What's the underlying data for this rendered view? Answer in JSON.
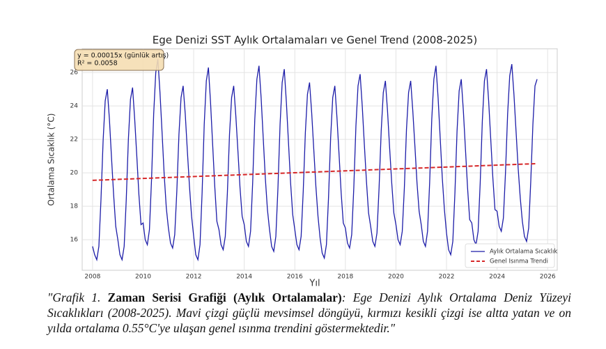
{
  "chart_data": {
    "type": "line",
    "title": "Ege Denizi SST Aylık Ortalamaları ve Genel Trend (2008-2025)",
    "xlabel": "Yıl",
    "ylabel": "Ortalama Sıcaklık (°C)",
    "annotation": [
      "y = 0.00015x (günlük artış)",
      "R² = 0.0058"
    ],
    "xlim": [
      2007.59,
      2026.38
    ],
    "xticks": [
      2008,
      2010,
      2012,
      2014,
      2016,
      2018,
      2020,
      2022,
      2024,
      2026
    ],
    "ylim": [
      14.17,
      27.42
    ],
    "yticks": [
      16,
      18,
      20,
      22,
      24,
      26
    ],
    "grid": true,
    "legend": "lower right",
    "series": [
      {
        "name": "Aylık Ortalama Sıcaklık",
        "color": "#1c1ca8",
        "style": "solid",
        "x": [
          2008,
          2008.083,
          2008.167,
          2008.25,
          2008.333,
          2008.417,
          2008.5,
          2008.583,
          2008.667,
          2008.75,
          2008.833,
          2008.917,
          2009,
          2009.083,
          2009.167,
          2009.25,
          2009.333,
          2009.417,
          2009.5,
          2009.583,
          2009.667,
          2009.75,
          2009.833,
          2009.917,
          2010,
          2010.083,
          2010.167,
          2010.25,
          2010.333,
          2010.417,
          2010.5,
          2010.583,
          2010.667,
          2010.75,
          2010.833,
          2010.917,
          2011,
          2011.083,
          2011.167,
          2011.25,
          2011.333,
          2011.417,
          2011.5,
          2011.583,
          2011.667,
          2011.75,
          2011.833,
          2011.917,
          2012,
          2012.083,
          2012.167,
          2012.25,
          2012.333,
          2012.417,
          2012.5,
          2012.583,
          2012.667,
          2012.75,
          2012.833,
          2012.917,
          2013,
          2013.083,
          2013.167,
          2013.25,
          2013.333,
          2013.417,
          2013.5,
          2013.583,
          2013.667,
          2013.75,
          2013.833,
          2013.917,
          2014,
          2014.083,
          2014.167,
          2014.25,
          2014.333,
          2014.417,
          2014.5,
          2014.583,
          2014.667,
          2014.75,
          2014.833,
          2014.917,
          2015,
          2015.083,
          2015.167,
          2015.25,
          2015.333,
          2015.417,
          2015.5,
          2015.583,
          2015.667,
          2015.75,
          2015.833,
          2015.917,
          2016,
          2016.083,
          2016.167,
          2016.25,
          2016.333,
          2016.417,
          2016.5,
          2016.583,
          2016.667,
          2016.75,
          2016.833,
          2016.917,
          2017,
          2017.083,
          2017.167,
          2017.25,
          2017.333,
          2017.417,
          2017.5,
          2017.583,
          2017.667,
          2017.75,
          2017.833,
          2017.917,
          2018,
          2018.083,
          2018.167,
          2018.25,
          2018.333,
          2018.417,
          2018.5,
          2018.583,
          2018.667,
          2018.75,
          2018.833,
          2018.917,
          2019,
          2019.083,
          2019.167,
          2019.25,
          2019.333,
          2019.417,
          2019.5,
          2019.583,
          2019.667,
          2019.75,
          2019.833,
          2019.917,
          2020,
          2020.083,
          2020.167,
          2020.25,
          2020.333,
          2020.417,
          2020.5,
          2020.583,
          2020.667,
          2020.75,
          2020.833,
          2020.917,
          2021,
          2021.083,
          2021.167,
          2021.25,
          2021.333,
          2021.417,
          2021.5,
          2021.583,
          2021.667,
          2021.75,
          2021.833,
          2021.917,
          2022,
          2022.083,
          2022.167,
          2022.25,
          2022.333,
          2022.417,
          2022.5,
          2022.583,
          2022.667,
          2022.75,
          2022.833,
          2022.917,
          2023,
          2023.083,
          2023.167,
          2023.25,
          2023.333,
          2023.417,
          2023.5,
          2023.583,
          2023.667,
          2023.75,
          2023.833,
          2023.917,
          2024,
          2024.083,
          2024.167,
          2024.25,
          2024.333,
          2024.417,
          2024.5,
          2024.583,
          2024.667,
          2024.75,
          2024.833,
          2024.917,
          2025,
          2025.083,
          2025.167,
          2025.25,
          2025.333,
          2025.417,
          2025.5,
          2025.583
        ],
        "values": [
          15.6,
          15.1,
          14.8,
          15.6,
          18.4,
          21.9,
          24.3,
          25.0,
          23.2,
          20.9,
          18.7,
          16.8,
          16.0,
          15.1,
          14.8,
          15.6,
          18.4,
          22.0,
          24.4,
          25.1,
          23.2,
          21.0,
          18.7,
          16.9,
          17.0,
          16.0,
          15.7,
          16.6,
          19.6,
          23.5,
          26.0,
          26.8,
          24.8,
          22.4,
          19.9,
          17.9,
          16.7,
          15.8,
          15.5,
          16.3,
          18.9,
          22.3,
          24.5,
          25.2,
          23.5,
          21.3,
          19.2,
          17.4,
          16.2,
          15.1,
          14.8,
          15.7,
          18.8,
          22.9,
          25.5,
          26.3,
          24.2,
          21.7,
          19.2,
          17.1,
          16.6,
          15.7,
          15.4,
          16.2,
          18.8,
          22.3,
          24.5,
          25.2,
          23.4,
          21.3,
          19.1,
          17.4,
          16.9,
          15.9,
          15.6,
          16.5,
          19.4,
          23.2,
          25.6,
          26.4,
          24.5,
          22.1,
          19.7,
          17.8,
          16.6,
          15.6,
          15.3,
          16.2,
          19.1,
          22.9,
          25.4,
          26.2,
          24.2,
          21.8,
          19.4,
          17.5,
          16.6,
          15.7,
          15.4,
          16.2,
          18.9,
          22.4,
          24.7,
          25.4,
          23.6,
          21.4,
          19.2,
          17.4,
          16.1,
          15.2,
          14.9,
          15.7,
          18.5,
          22.1,
          24.5,
          25.2,
          23.3,
          21.1,
          18.8,
          17.0,
          16.7,
          15.8,
          15.5,
          16.3,
          19.1,
          22.8,
          25.2,
          25.9,
          24.0,
          21.7,
          19.5,
          17.6,
          16.8,
          15.9,
          15.6,
          16.4,
          19.1,
          22.5,
          24.8,
          25.5,
          23.7,
          21.5,
          19.4,
          17.6,
          16.9,
          16.0,
          15.7,
          16.5,
          19.1,
          22.6,
          24.8,
          25.5,
          23.7,
          21.6,
          19.4,
          17.7,
          16.9,
          15.9,
          15.6,
          16.5,
          19.4,
          23.2,
          25.6,
          26.4,
          24.5,
          22.1,
          19.7,
          17.8,
          16.4,
          15.4,
          15.1,
          15.9,
          18.8,
          22.5,
          24.9,
          25.6,
          23.7,
          21.4,
          19.1,
          17.2,
          17.0,
          16.0,
          15.7,
          16.5,
          19.4,
          23.1,
          25.5,
          26.2,
          24.3,
          22.0,
          19.7,
          17.8,
          17.7,
          16.8,
          16.5,
          17.3,
          20.0,
          23.5,
          25.8,
          26.5,
          24.7,
          22.5,
          20.3,
          18.5,
          17.1,
          16.2,
          15.9,
          16.7,
          19.5,
          22.9,
          25.2,
          25.6
        ]
      },
      {
        "name": "Genel Isınma Trendi",
        "color": "#d62728",
        "style": "dashed",
        "x": [
          2008,
          2025.583
        ],
        "values": [
          19.55,
          20.55
        ]
      }
    ]
  },
  "caption": {
    "lead": "\"Grafik 1. ",
    "bold": "Zaman Serisi Grafiği (Aylık Ortalamalar)",
    "rest": ": Ege Denizi Aylık Ortalama Deniz Yüzeyi Sıcaklıkları (2008-2025). Mavi çizgi güçlü mevsimsel döngüyü, kırmızı kesikli çizgi ise altta yatan ve on yılda ortalama 0.55°C'ye ulaşan genel ısınma trendini göstermektedir.\""
  }
}
